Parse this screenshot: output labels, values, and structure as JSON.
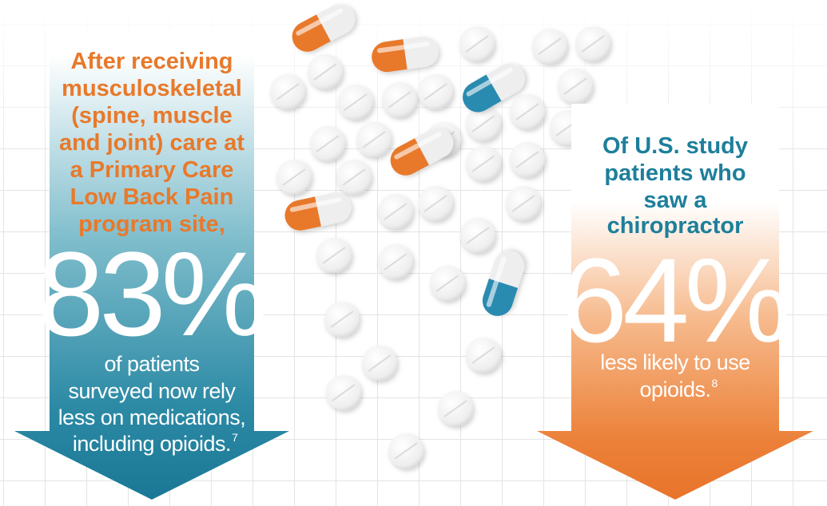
{
  "left_panel": {
    "heading": [
      "After receiving",
      "musculoskeletal",
      "(spine, muscle",
      "and joint) care at",
      "a Primary Care",
      "Low Back Pain",
      "program site,"
    ],
    "stat": "83%",
    "body": [
      "of patients",
      "surveyed now rely",
      "less on medications,",
      "including opioids."
    ],
    "footnote": "7"
  },
  "right_panel": {
    "heading": [
      "Of U.S. study",
      "patients who",
      "saw a",
      "chiropractor"
    ],
    "stat": "64%",
    "body": [
      "less likely to use",
      "opioids."
    ],
    "footnote": "8"
  }
}
